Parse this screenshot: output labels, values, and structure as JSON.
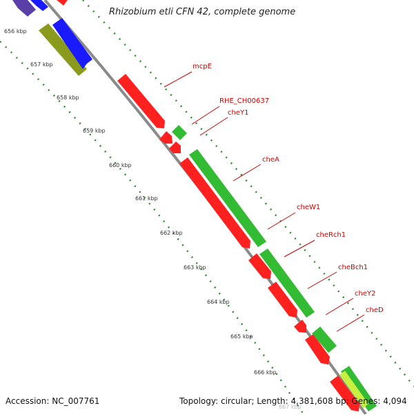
{
  "title": "Rhizobium etli CFN 42, complete genome",
  "footer": {
    "accession": "Accession: NC_007761",
    "summary": "Topology: circular; Length: 4,381,608 bp; Genes: 4,094"
  },
  "colors": {
    "forward_gene": "#ff2020",
    "reverse_gene": "#33bb33",
    "backbone": "#888888",
    "label": "#cc0000",
    "tick_green": "#2e8b2e"
  },
  "kbp_labels": [
    "656 kbp",
    "657 kbp",
    "658 kbp",
    "659 kbp",
    "660 kbp",
    "661 kbp",
    "662 kbp",
    "663 kbp",
    "664 kbp",
    "665 kbp",
    "666 kbp",
    "667 kbp"
  ],
  "genes": [
    {
      "name": "mcpE",
      "strand": "+"
    },
    {
      "name": "RHE_CH00637",
      "strand": "-"
    },
    {
      "name": "cheY1",
      "strand": "+"
    },
    {
      "name": "cheA",
      "strand": "-"
    },
    {
      "name": "cheW1",
      "strand": "+"
    },
    {
      "name": "cheRch1",
      "strand": "-"
    },
    {
      "name": "cheBch1",
      "strand": "+"
    },
    {
      "name": "cheY2",
      "strand": "-"
    },
    {
      "name": "cheD",
      "strand": "+"
    }
  ]
}
